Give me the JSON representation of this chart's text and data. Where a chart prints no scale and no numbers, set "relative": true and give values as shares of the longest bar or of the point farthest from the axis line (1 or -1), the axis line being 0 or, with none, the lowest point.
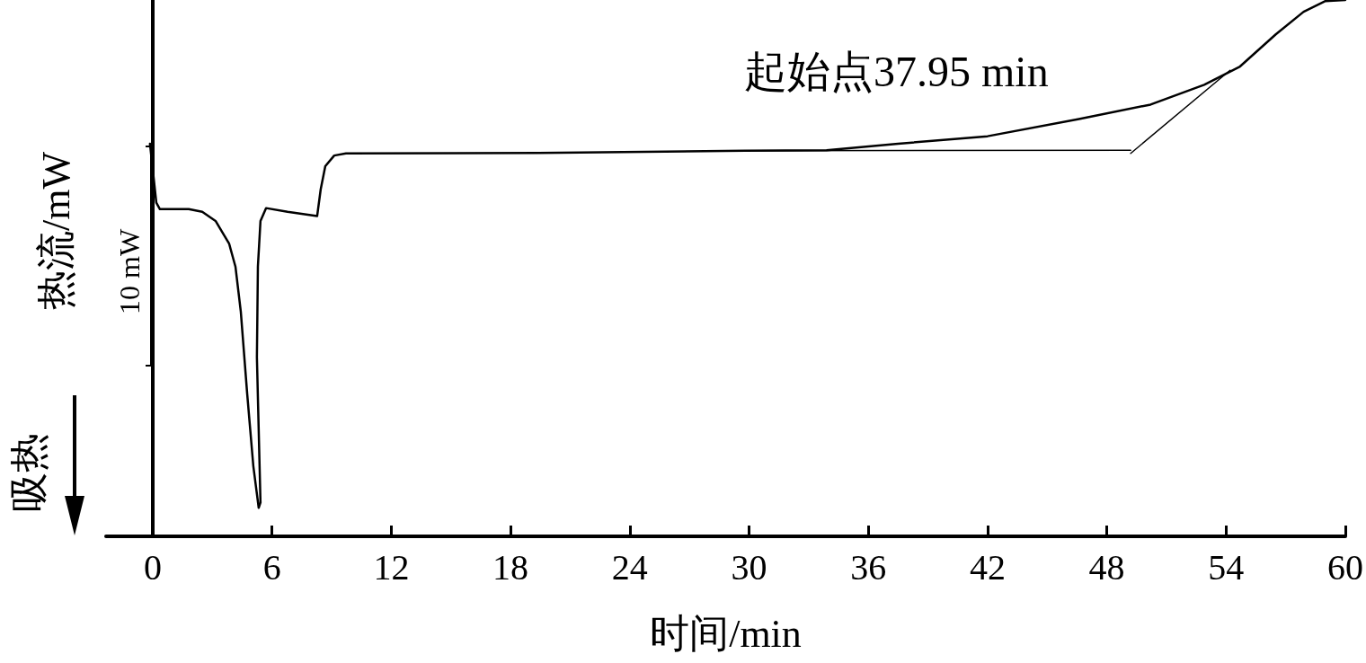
{
  "chart_data": {
    "type": "line",
    "relative": true,
    "xlabel": "时间/min",
    "ylabel": "热流/mW",
    "annotations": [
      "起始点37.95 min",
      "10 mW",
      "吸热"
    ],
    "xlim": [
      -2.35,
      60
    ],
    "xticks": [
      0,
      6,
      12,
      18,
      24,
      30,
      36,
      42,
      48,
      54,
      60
    ],
    "marker": "none",
    "line_style": "solid",
    "series": [
      {
        "color": "#000000",
        "x": [
          -0.14,
          0.18,
          0.36,
          1.81,
          2.49,
          3.16,
          3.84,
          4.16,
          4.43,
          4.75,
          5.06,
          5.33,
          5.42,
          5.24,
          5.29,
          5.42,
          5.7,
          6.78,
          8.27,
          8.45,
          8.68,
          9.13,
          9.72,
          19.4,
          29.8,
          33.9,
          37.5,
          42.0,
          46.6,
          50.2,
          52.9,
          54.7,
          56.5,
          57.9,
          59.0,
          60.0
        ],
        "values": [
          0.732,
          0.622,
          0.61,
          0.61,
          0.605,
          0.588,
          0.546,
          0.503,
          0.419,
          0.266,
          0.131,
          0.053,
          0.063,
          0.334,
          0.503,
          0.588,
          0.612,
          0.605,
          0.597,
          0.647,
          0.69,
          0.71,
          0.714,
          0.715,
          0.719,
          0.72,
          0.732,
          0.746,
          0.778,
          0.805,
          0.842,
          0.876,
          0.936,
          0.978,
          0.998,
          1.0
        ]
      },
      {
        "color": "#000000",
        "x": [
          29.8,
          49.2
        ],
        "values": [
          0.719,
          0.72
        ]
      },
      {
        "color": "#000000",
        "x": [
          49.2,
          54.2
        ],
        "values": [
          0.714,
          0.869
        ]
      }
    ]
  }
}
